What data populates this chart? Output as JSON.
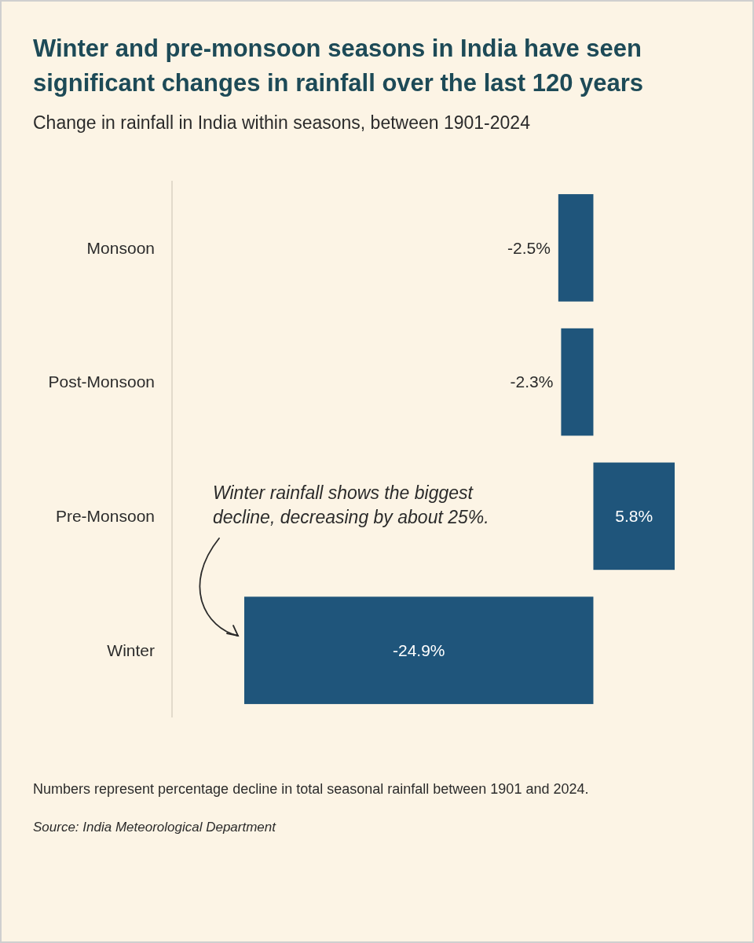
{
  "chart_data": {
    "type": "bar",
    "orientation": "horizontal",
    "title": "Winter and pre-monsoon seasons in India have seen significant changes in rainfall over the last 120 years",
    "subtitle": "Change in rainfall in India within seasons, between 1901-2024",
    "categories": [
      "Monsoon",
      "Post-Monsoon",
      "Pre-Monsoon",
      "Winter"
    ],
    "values": [
      -2.5,
      -2.3,
      5.8,
      -24.9
    ],
    "value_labels": [
      "-2.5%",
      "-2.3%",
      "5.8%",
      "-24.9%"
    ],
    "color": "#1f557b",
    "tick_labels": "y",
    "annotations": [
      "Winter rainfall shows the biggest decline, decreasing by about 25%.",
      "Numbers represent percentage decline in total seasonal rainfall between 1901 and 2024.",
      "Source: India Meteorological Department"
    ]
  }
}
